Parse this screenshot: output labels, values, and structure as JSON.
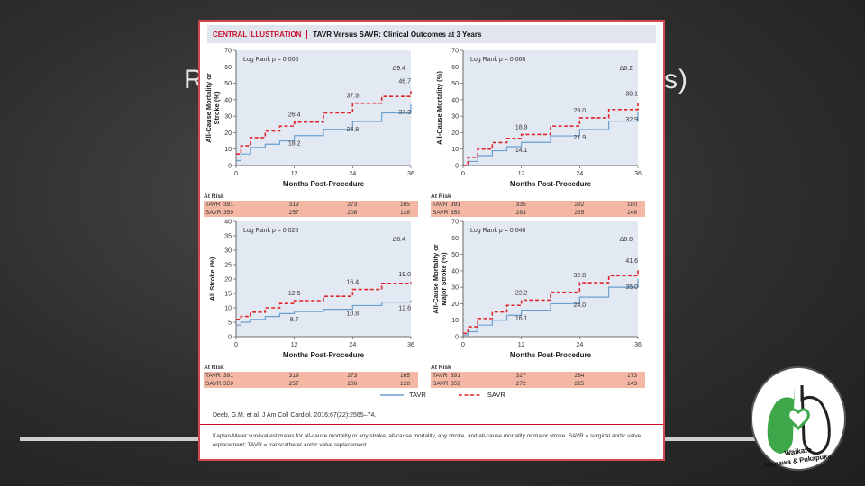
{
  "slide": {
    "title_left": "R",
    "title_right": "s)"
  },
  "header": {
    "label": "CENTRAL ILLUSTRATION",
    "title": "TAVR Versus SAVR: Clinical Outcomes at 3 Years"
  },
  "colors": {
    "tavr": "#6a9fd0",
    "savr": "#e0262a",
    "plot_bg": "#e3e9f3"
  },
  "chart_data": [
    {
      "type": "line",
      "ylabel": "All-Cause Mortality or Stroke (%)",
      "xlabel": "Months Post-Procedure",
      "xlim": [
        0,
        36
      ],
      "ylim": [
        0,
        70
      ],
      "xticks": [
        0,
        12,
        24,
        36
      ],
      "yticks": [
        0,
        10,
        20,
        30,
        40,
        50,
        60,
        70
      ],
      "pvalue": "Log Rank p = 0.006",
      "delta": "Δ9.4",
      "series": [
        {
          "name": "TAVR",
          "x": [
            0,
            1,
            3,
            6,
            9,
            12,
            18,
            24,
            30,
            36
          ],
          "values": [
            3,
            7,
            11,
            13,
            15,
            18.2,
            22,
            26.8,
            32,
            37.3
          ],
          "labels": [
            {
              "x": 12,
              "y": 18.2,
              "text": "18.2"
            },
            {
              "x": 24,
              "y": 26.8,
              "text": "26.8"
            },
            {
              "x": 36,
              "y": 37.3,
              "text": "37.3"
            }
          ]
        },
        {
          "name": "SAVR",
          "x": [
            0,
            1,
            3,
            6,
            9,
            12,
            18,
            24,
            30,
            36
          ],
          "values": [
            7,
            12,
            17,
            21,
            24,
            26.4,
            32,
            37.9,
            42,
            46.7
          ],
          "labels": [
            {
              "x": 12,
              "y": 26.4,
              "text": "26.4"
            },
            {
              "x": 24,
              "y": 37.9,
              "text": "37.9"
            },
            {
              "x": 36,
              "y": 46.7,
              "text": "46.7"
            }
          ]
        }
      ],
      "at_risk": {
        "title": "At Risk",
        "rows": [
          {
            "name": "TAVR",
            "values": [
              "391",
              "319",
              "273",
              "165"
            ]
          },
          {
            "name": "SAVR",
            "values": [
              "359",
              "257",
              "208",
              "128"
            ]
          }
        ]
      }
    },
    {
      "type": "line",
      "ylabel": "All-Cause Mortality (%)",
      "xlabel": "Months Post-Procedure",
      "xlim": [
        0,
        36
      ],
      "ylim": [
        0,
        70
      ],
      "xticks": [
        0,
        12,
        24,
        36
      ],
      "yticks": [
        0,
        10,
        20,
        30,
        40,
        50,
        60,
        70
      ],
      "pvalue": "Log Rank p = 0.068",
      "delta": "Δ6.2",
      "series": [
        {
          "name": "TAVR",
          "x": [
            0,
            1,
            3,
            6,
            9,
            12,
            18,
            24,
            30,
            36
          ],
          "values": [
            0,
            2.5,
            6,
            9,
            11.5,
            14.1,
            18,
            21.9,
            27,
            32.9
          ],
          "labels": [
            {
              "x": 12,
              "y": 14.1,
              "text": "14.1"
            },
            {
              "x": 24,
              "y": 21.9,
              "text": "21.9"
            },
            {
              "x": 36,
              "y": 32.9,
              "text": "32.9"
            }
          ]
        },
        {
          "name": "SAVR",
          "x": [
            0,
            1,
            3,
            6,
            9,
            12,
            18,
            24,
            30,
            36
          ],
          "values": [
            0,
            5,
            10,
            14,
            16.5,
            18.9,
            24,
            29.0,
            34,
            39.1
          ],
          "labels": [
            {
              "x": 12,
              "y": 18.9,
              "text": "18.9"
            },
            {
              "x": 24,
              "y": 29.0,
              "text": "29.0"
            },
            {
              "x": 36,
              "y": 39.1,
              "text": "39.1"
            }
          ]
        }
      ],
      "at_risk": {
        "title": "At Risk",
        "rows": [
          {
            "name": "TAVR",
            "values": [
              "391",
              "335",
              "292",
              "180"
            ]
          },
          {
            "name": "SAVR",
            "values": [
              "359",
              "283",
              "235",
              "148"
            ]
          }
        ]
      }
    },
    {
      "type": "line",
      "ylabel": "All Stroke (%)",
      "xlabel": "Months Post-Procedure",
      "xlim": [
        0,
        36
      ],
      "ylim": [
        0,
        40
      ],
      "xticks": [
        0,
        12,
        24,
        36
      ],
      "yticks": [
        0,
        5,
        10,
        15,
        20,
        25,
        30,
        35,
        40
      ],
      "pvalue": "Log Rank p = 0.025",
      "delta": "Δ6.4",
      "series": [
        {
          "name": "TAVR",
          "x": [
            0,
            1,
            3,
            6,
            9,
            12,
            18,
            24,
            30,
            36
          ],
          "values": [
            4,
            5,
            6,
            7,
            8,
            8.7,
            9.5,
            10.8,
            12,
            12.6
          ],
          "labels": [
            {
              "x": 12,
              "y": 8.7,
              "text": "8.7"
            },
            {
              "x": 24,
              "y": 10.8,
              "text": "10.8"
            },
            {
              "x": 36,
              "y": 12.6,
              "text": "12.6"
            }
          ]
        },
        {
          "name": "SAVR",
          "x": [
            0,
            1,
            3,
            6,
            9,
            12,
            18,
            24,
            30,
            36
          ],
          "values": [
            6,
            7,
            8.5,
            10,
            11.5,
            12.5,
            14,
            16.4,
            18.5,
            19.0
          ],
          "labels": [
            {
              "x": 12,
              "y": 12.5,
              "text": "12.5"
            },
            {
              "x": 24,
              "y": 16.4,
              "text": "16.4"
            },
            {
              "x": 36,
              "y": 19.0,
              "text": "19.0"
            }
          ]
        }
      ],
      "at_risk": {
        "title": "At Risk",
        "rows": [
          {
            "name": "TAVR",
            "values": [
              "391",
              "319",
              "273",
              "165"
            ]
          },
          {
            "name": "SAVR",
            "values": [
              "359",
              "257",
              "208",
              "128"
            ]
          }
        ]
      }
    },
    {
      "type": "line",
      "ylabel": "All-Cause Mortality or Major Stroke (%)",
      "xlabel": "Months Post-Procedure",
      "xlim": [
        0,
        36
      ],
      "ylim": [
        0,
        70
      ],
      "xticks": [
        0,
        12,
        24,
        36
      ],
      "yticks": [
        0,
        10,
        20,
        30,
        40,
        50,
        60,
        70
      ],
      "pvalue": "Log Rank p = 0.046",
      "delta": "Δ6.6",
      "series": [
        {
          "name": "TAVR",
          "x": [
            0,
            1,
            3,
            6,
            9,
            12,
            18,
            24,
            30,
            36
          ],
          "values": [
            1,
            3,
            7,
            10,
            13,
            16.1,
            20,
            24.0,
            30,
            35.0
          ],
          "labels": [
            {
              "x": 12,
              "y": 16.1,
              "text": "16.1"
            },
            {
              "x": 24,
              "y": 24.0,
              "text": "24.0"
            },
            {
              "x": 36,
              "y": 35.0,
              "text": "35.0"
            }
          ]
        },
        {
          "name": "SAVR",
          "x": [
            0,
            1,
            3,
            6,
            9,
            12,
            18,
            24,
            30,
            36
          ],
          "values": [
            2,
            6,
            11,
            15,
            19,
            22.2,
            27,
            32.8,
            37,
            41.6
          ],
          "labels": [
            {
              "x": 12,
              "y": 22.2,
              "text": "22.2"
            },
            {
              "x": 24,
              "y": 32.8,
              "text": "32.8"
            },
            {
              "x": 36,
              "y": 41.6,
              "text": "41.6"
            }
          ]
        }
      ],
      "at_risk": {
        "title": "At Risk",
        "rows": [
          {
            "name": "TAVR",
            "values": [
              "391",
              "327",
              "284",
              "173"
            ]
          },
          {
            "name": "SAVR",
            "values": [
              "359",
              "272",
              "225",
              "143"
            ]
          }
        ]
      }
    }
  ],
  "legend": {
    "tavr": "TAVR",
    "savr": "SAVR"
  },
  "citation": "Deeb, G.M. et al. J Am Coll Cardiol. 2016;67(22):2565–74.",
  "caption": "Kaplan-Meier survival estimates for all-cause mortality or any stroke, all-cause mortality, any stroke, and all-cause mortality or major stroke. SAVR = surgical aortic valve replacement; TAVR = transcatheter aortic valve replacement.",
  "logo": {
    "line1": "Waikato",
    "line2": "Manawa & Pukapuka"
  }
}
